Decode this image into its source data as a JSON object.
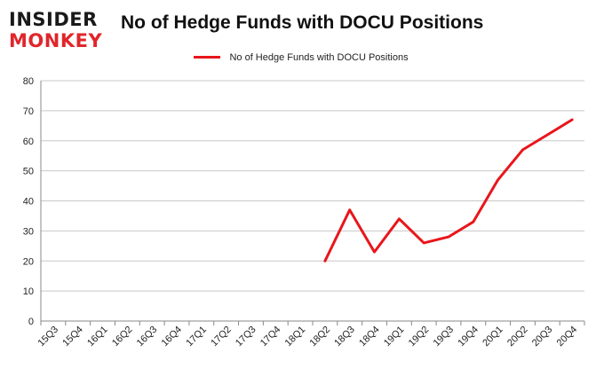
{
  "logo": {
    "line1": "INSIDER",
    "line2": "MONKEY"
  },
  "chart_data": {
    "type": "line",
    "title": "No of Hedge Funds with DOCU Positions",
    "legend": {
      "position": "top-center",
      "entries": [
        "No of Hedge Funds with DOCU Positions"
      ]
    },
    "categories": [
      "15Q3",
      "15Q4",
      "16Q1",
      "16Q2",
      "16Q3",
      "16Q4",
      "17Q1",
      "17Q2",
      "17Q3",
      "17Q4",
      "18Q1",
      "18Q2",
      "18Q3",
      "18Q4",
      "19Q1",
      "19Q2",
      "19Q3",
      "19Q4",
      "20Q1",
      "20Q2",
      "20Q3",
      "20Q4"
    ],
    "series": [
      {
        "name": "No of Hedge Funds with DOCU Positions",
        "color": "#e8161b",
        "values": [
          null,
          null,
          null,
          null,
          null,
          null,
          null,
          null,
          null,
          null,
          null,
          20,
          37,
          23,
          34,
          26,
          28,
          33,
          47,
          57,
          62,
          67
        ]
      }
    ],
    "ylim": [
      0,
      80
    ],
    "yticks": [
      0,
      10,
      20,
      30,
      40,
      50,
      60,
      70,
      80
    ],
    "grid": true,
    "xlabel": "",
    "ylabel": ""
  }
}
